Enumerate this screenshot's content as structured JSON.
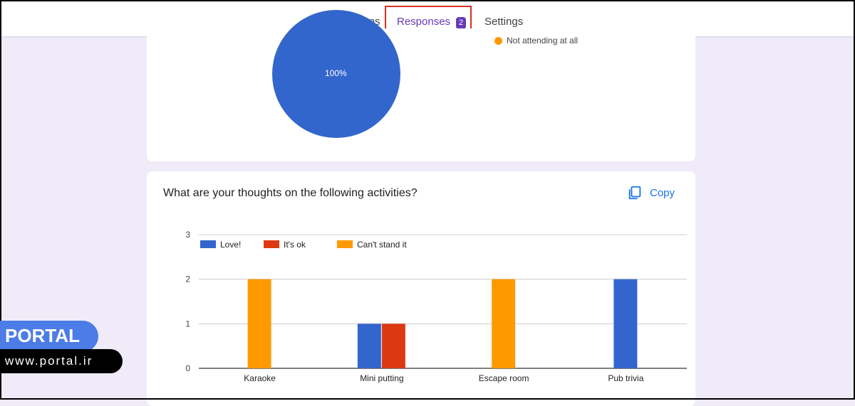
{
  "tabs": {
    "questions": "Questions",
    "responses": "Responses",
    "responses_count": "2",
    "settings": "Settings"
  },
  "pie": {
    "slice_label": "100%",
    "legend_item": "Not attending at all"
  },
  "question": {
    "title": "What are your thoughts on the following activities?",
    "copy_label": "Copy"
  },
  "chart_data": {
    "type": "bar",
    "categories": [
      "Karaoke",
      "Mini putting",
      "Escape room",
      "Pub trivia"
    ],
    "series": [
      {
        "name": "Love!",
        "color": "#3366cc",
        "values": [
          0,
          1,
          0,
          2
        ]
      },
      {
        "name": "It's ok",
        "color": "#dc3912",
        "values": [
          0,
          1,
          0,
          0
        ]
      },
      {
        "name": "Can't stand it",
        "color": "#ff9900",
        "values": [
          2,
          0,
          2,
          0
        ]
      }
    ],
    "yticks": [
      0,
      1,
      2,
      3
    ],
    "ylim": [
      0,
      3
    ],
    "legend": "top-left",
    "grid": true
  },
  "watermark": {
    "brand": "PORTAL",
    "url": "www.portal.ir"
  },
  "colors": {
    "accent": "#673ab7",
    "link": "#1a73e8",
    "background": "#f0ebf8"
  }
}
